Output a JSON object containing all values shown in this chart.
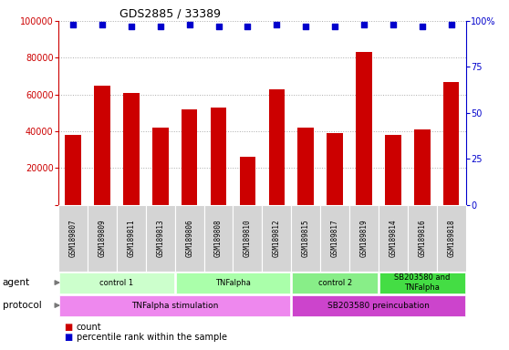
{
  "title": "GDS2885 / 33389",
  "samples": [
    "GSM189807",
    "GSM189809",
    "GSM189811",
    "GSM189813",
    "GSM189806",
    "GSM189808",
    "GSM189810",
    "GSM189812",
    "GSM189815",
    "GSM189817",
    "GSM189819",
    "GSM189814",
    "GSM189816",
    "GSM189818"
  ],
  "counts": [
    38000,
    65000,
    61000,
    42000,
    52000,
    53000,
    26000,
    63000,
    42000,
    39000,
    83000,
    38000,
    41000,
    67000
  ],
  "percentile_ranks": [
    98,
    98,
    97,
    97,
    98,
    97,
    97,
    98,
    97,
    97,
    98,
    98,
    97,
    98
  ],
  "bar_color": "#cc0000",
  "dot_color": "#0000cc",
  "ylim_left": [
    0,
    100000
  ],
  "ylim_right": [
    0,
    100
  ],
  "yticks_left": [
    0,
    20000,
    40000,
    60000,
    80000,
    100000
  ],
  "yticks_right": [
    0,
    25,
    50,
    75,
    100
  ],
  "ytick_labels_left": [
    "",
    "20000",
    "40000",
    "60000",
    "80000",
    "100000"
  ],
  "ytick_labels_right": [
    "0",
    "25",
    "50",
    "75",
    "100%"
  ],
  "grid_y": [
    20000,
    40000,
    60000,
    80000,
    100000
  ],
  "agent_groups": [
    {
      "label": "control 1",
      "start": 0,
      "end": 4,
      "color": "#ccffcc"
    },
    {
      "label": "TNFalpha",
      "start": 4,
      "end": 8,
      "color": "#aaffaa"
    },
    {
      "label": "control 2",
      "start": 8,
      "end": 11,
      "color": "#88ee88"
    },
    {
      "label": "SB203580 and\nTNFalpha",
      "start": 11,
      "end": 14,
      "color": "#44dd44"
    }
  ],
  "protocol_groups": [
    {
      "label": "TNFalpha stimulation",
      "start": 0,
      "end": 8,
      "color": "#ee88ee"
    },
    {
      "label": "SB203580 preincubation",
      "start": 8,
      "end": 14,
      "color": "#cc44cc"
    }
  ],
  "legend_count_label": "count",
  "legend_pct_label": "percentile rank within the sample",
  "agent_label": "agent",
  "protocol_label": "protocol",
  "bar_width": 0.55,
  "dot_size": 22
}
